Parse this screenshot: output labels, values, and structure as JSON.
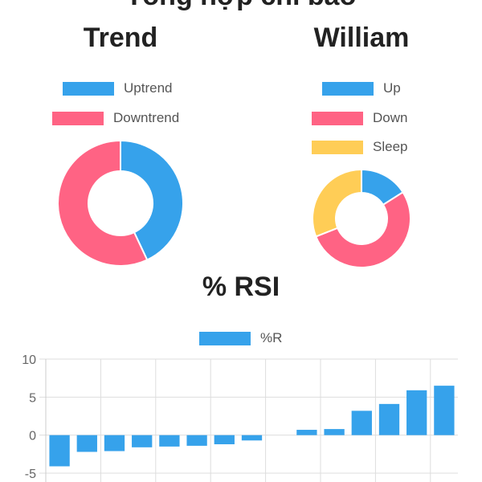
{
  "page": {
    "heading": "Tổng hợp chỉ báo"
  },
  "chart_data": [
    {
      "type": "pie",
      "donut": true,
      "title": "Trend",
      "labels": [
        "Uptrend",
        "Downtrend"
      ],
      "values": [
        43,
        57
      ],
      "colors": [
        "#36a2eb",
        "#ff6384"
      ],
      "legend": "top"
    },
    {
      "type": "pie",
      "donut": true,
      "title": "William",
      "labels": [
        "Up",
        "Down",
        "Sleep"
      ],
      "values": [
        16,
        53,
        31
      ],
      "colors": [
        "#36a2eb",
        "#ff6384",
        "#ffcd56"
      ],
      "legend": "top"
    },
    {
      "type": "bar",
      "title": "% RSI",
      "series": [
        {
          "name": "%R",
          "color": "#36a2eb",
          "values": [
            -4.1,
            -2.2,
            -2.1,
            -1.6,
            -1.5,
            -1.4,
            -1.2,
            -0.7,
            0,
            0.7,
            0.8,
            3.2,
            4.1,
            5.9,
            6.5
          ]
        }
      ],
      "ylim": [
        -5,
        10
      ],
      "yticks": [
        10,
        5,
        0,
        -5
      ],
      "grid": true,
      "legend": "top"
    }
  ]
}
